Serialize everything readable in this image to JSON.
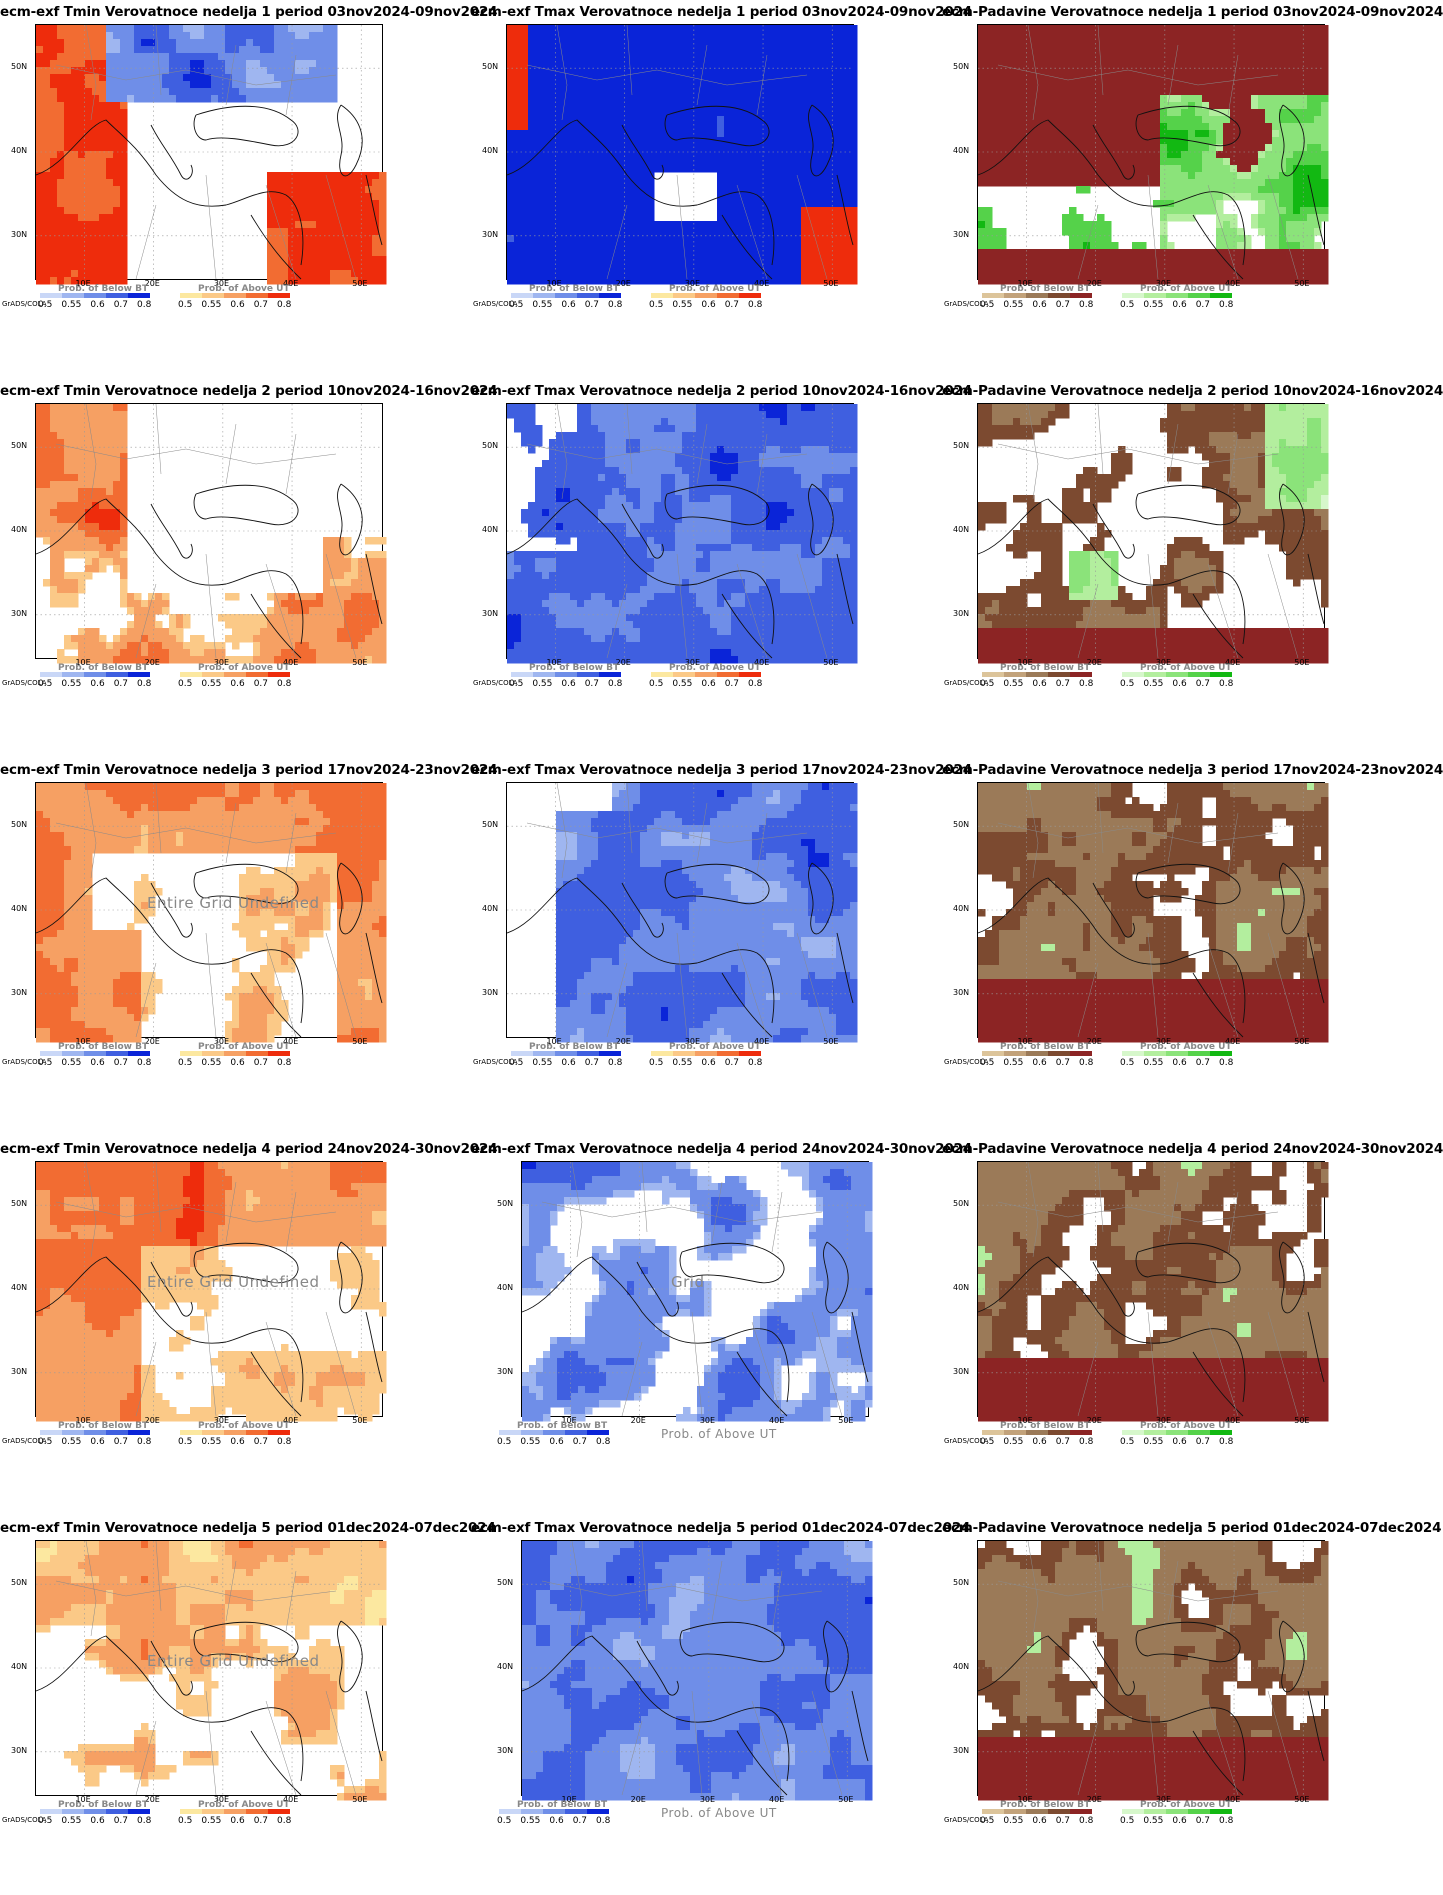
{
  "software": "GrADS/COLA",
  "undefined_text": "Entire Grid Undefined",
  "grid_text_partial": "Grid",
  "axes": {
    "lat_ticks": [
      "50N",
      "40N",
      "30N"
    ],
    "lon_ticks": [
      "10E",
      "20E",
      "30E",
      "40E",
      "50E"
    ]
  },
  "legend": {
    "below_title": "Prob. of Below BT",
    "above_title": "Prob. of Above UT",
    "ticks": [
      "0.5",
      "0.55",
      "0.6",
      "0.7",
      "0.8"
    ],
    "palettes": {
      "blue": [
        "#c9d7f7",
        "#9fb6f0",
        "#6f8ee8",
        "#3f5fe0",
        "#0a24d8"
      ],
      "red": [
        "#fce8a0",
        "#fbc987",
        "#f6a063",
        "#f26c32",
        "#ee2c0c"
      ],
      "brown": [
        "#dcc49a",
        "#c2a27a",
        "#9b7a58",
        "#7c4a30",
        "#8c2424"
      ],
      "green": [
        "#d6f7cb",
        "#b3ee9e",
        "#8be37a",
        "#55d24a",
        "#12b812"
      ]
    }
  },
  "panels": [
    {
      "title": "ecm-exf Tmin Verovatnoce nedelja 1 period 03nov2024-09nov2024",
      "field": "tmin",
      "week": 1,
      "undefined": false
    },
    {
      "title": "ecm-exf Tmax Verovatnoce nedelja 1 period 03nov2024-09nov2024",
      "field": "tmax",
      "week": 1,
      "undefined": false
    },
    {
      "title": "ecm-Padavine Verovatnoce nedelja 1 period 03nov2024-09nov2024",
      "field": "precip",
      "week": 1,
      "undefined": false
    },
    {
      "title": "ecm-exf Tmin Verovatnoce nedelja 2 period 10nov2024-16nov2024",
      "field": "tmin",
      "week": 2,
      "undefined": false
    },
    {
      "title": "ecm-exf Tmax Verovatnoce nedelja 2 period 10nov2024-16nov2024",
      "field": "tmax",
      "week": 2,
      "undefined": false
    },
    {
      "title": "ecm-Padavine Verovatnoce nedelja 2 period 10nov2024-16nov2024",
      "field": "precip",
      "week": 2,
      "undefined": false
    },
    {
      "title": "ecm-exf Tmin Verovatnoce nedelja 3 period 17nov2024-23nov2024",
      "field": "tmin",
      "week": 3,
      "undefined": true
    },
    {
      "title": "ecm-exf Tmax Verovatnoce nedelja 3 period 17nov2024-23nov2024",
      "field": "tmax",
      "week": 3,
      "undefined": false
    },
    {
      "title": "ecm-Padavine Verovatnoce nedelja 3 period 17nov2024-23nov2024",
      "field": "precip",
      "week": 3,
      "undefined": false
    },
    {
      "title": "ecm-exf Tmin Verovatnoce nedelja 4 period 24nov2024-30nov2024",
      "field": "tmin",
      "week": 4,
      "undefined": true
    },
    {
      "title": "ecm-exf Tmax Verovatnoce nedelja 4 period 24nov2024-30nov2024",
      "field": "tmax",
      "week": 4,
      "undefined": false,
      "grid_partial": true,
      "above_undefined": true
    },
    {
      "title": "ecm-Padavine Verovatnoce nedelja 4 period 24nov2024-30nov2024",
      "field": "precip",
      "week": 4,
      "undefined": false
    },
    {
      "title": "ecm-exf Tmin Verovatnoce nedelja 5 period 01dec2024-07dec2024",
      "field": "tmin",
      "week": 5,
      "undefined": true
    },
    {
      "title": "ecm-exf Tmax Verovatnoce nedelja 5 period 01dec2024-07dec2024",
      "field": "tmax",
      "week": 5,
      "undefined": false,
      "above_undefined": true
    },
    {
      "title": "ecm-Padavine Verovatnoce nedelja 5 period 01dec2024-07dec2024",
      "field": "precip",
      "week": 5,
      "undefined": false
    }
  ]
}
